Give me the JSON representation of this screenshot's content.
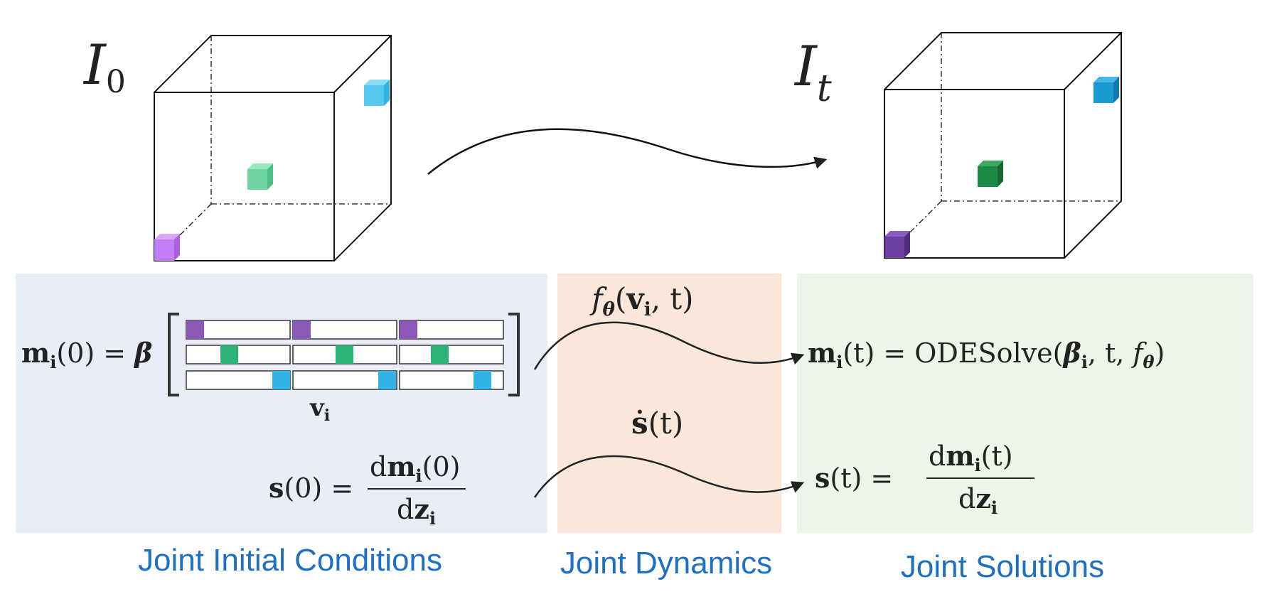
{
  "colors": {
    "panel_initial": "#e9edf5",
    "panel_dynamics": "#fbe7d9",
    "panel_solutions": "#edf4e8",
    "caption_blue": "#1f6fc2",
    "purple_light": "#c27ef6",
    "purple_dark": "#6a3fa0",
    "purple_matrix": "#8b5ab6",
    "green_light": "#6fd3a0",
    "green_dark": "#1d8a45",
    "green_matrix": "#2db37a",
    "cyan_light": "#55c8f2",
    "cyan_dark": "#1a9bd0",
    "cyan_matrix": "#31b3e8"
  },
  "volumes": {
    "initial": {
      "label": "I",
      "subscript": "0"
    },
    "final": {
      "label": "I",
      "subscript": "t"
    }
  },
  "initial_conditions": {
    "m_lhs": {
      "bold": "m",
      "sub": "i",
      "rest": "(0) = "
    },
    "beta": "β",
    "v_label": {
      "bold": "v",
      "sub": "i"
    },
    "s_lhs": {
      "bold": "s",
      "rest": "(0) = "
    },
    "s_num": {
      "pre": "d",
      "bold": "m",
      "sub": "i",
      "rest": "(0)"
    },
    "s_den": {
      "pre": "d",
      "bold": "z",
      "sub": "i"
    }
  },
  "dynamics": {
    "f_label": {
      "f": "f",
      "theta": "θ",
      "open": "(",
      "bold": "v",
      "sub": "i",
      "rest": ", t)"
    },
    "sdot_label": {
      "bold": "ṡ",
      "rest": "(t)"
    }
  },
  "solutions": {
    "m_eq": {
      "bold": "m",
      "sub": "i",
      "rest": "(t) = ODESolve(",
      "beta": "β",
      "beta_sub": "i",
      "mid": ", t, ",
      "f": "f",
      "theta": "θ",
      "close": ")"
    },
    "s_lhs": {
      "bold": "s",
      "rest": "(t) = "
    },
    "s_num": {
      "pre": "d",
      "bold": "m",
      "sub": "i",
      "rest": "(t)"
    },
    "s_den": {
      "pre": "d",
      "bold": "z",
      "sub": "i"
    }
  },
  "captions": {
    "initial": "Joint Initial Conditions",
    "dynamics": "Joint Dynamics",
    "solutions": "Joint Solutions"
  }
}
